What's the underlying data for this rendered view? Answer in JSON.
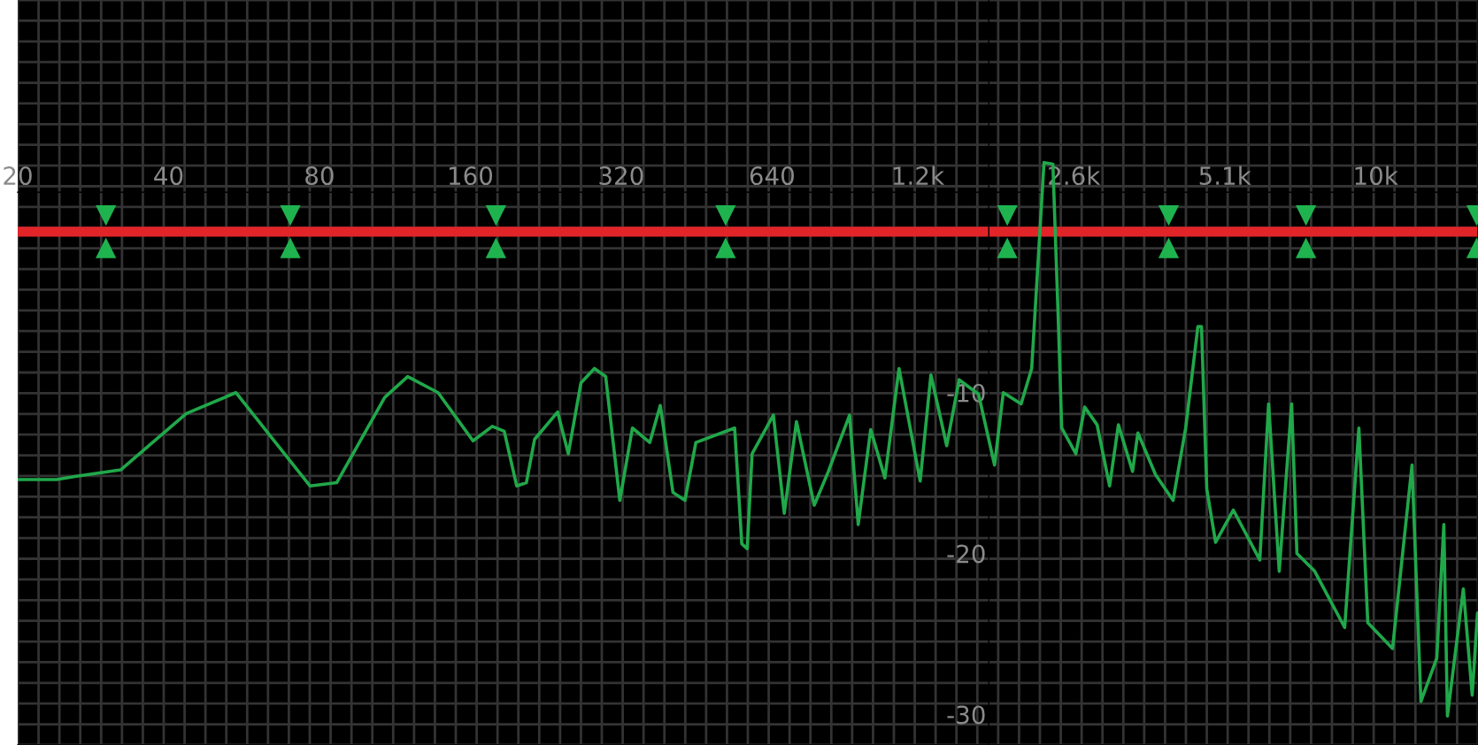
{
  "chart_data": {
    "type": "line",
    "log": "x",
    "xlim": [
      20,
      16400
    ],
    "ylim": [
      -31.9,
      14.4
    ],
    "xticks": [
      20,
      40,
      80,
      160,
      320,
      640,
      {
        "value": 1250,
        "label": "1.2k"
      },
      {
        "value": 2560,
        "label": "2.6k"
      },
      {
        "value": 5120,
        "label": "5.1k"
      },
      {
        "value": 10240,
        "label": "10k"
      }
    ],
    "yticks": [
      -10,
      -20,
      -30
    ],
    "grid": true,
    "series": [
      {
        "color": "#20a84a",
        "line_style": "solid",
        "marker": "none",
        "x": [
          20,
          23.9,
          26.2,
          32.1,
          43.4,
          54.5,
          76.6,
          86.6,
          108,
          120,
          138,
          162,
          177,
          187,
          198,
          207,
          215,
          239,
          251,
          266,
          283,
          298,
          318,
          337,
          365,
          383,
          406,
          429,
          451,
          539,
          557,
          571,
          584,
          644,
          677,
          716,
          777,
          829,
          914,
          951,
          1007,
          1075,
          1147,
          1264,
          1328,
          1428,
          1512,
          1653,
          1779,
          1852,
          2010,
          2110,
          2233,
          2326,
          2384,
          2422,
          2585,
          2692,
          2850,
          3018,
          3143,
          3354,
          3437,
          3728,
          4040,
          4281,
          4528,
          4604,
          4717,
          4912,
          5330,
          6018,
          6267,
          6580,
          6966,
          7137,
          7744,
          8889,
          9488,
          9884,
          11075,
          12111,
          12616,
          13570,
          14018,
          14252,
          15330,
          15970,
          16364
        ],
        "values": [
          -15.4,
          -15.4,
          -15.2,
          -14.8,
          -11.3,
          -10.0,
          -15.8,
          -15.6,
          -10.3,
          -9.0,
          -10.0,
          -13.0,
          -12.1,
          -12.4,
          -15.8,
          -15.6,
          -12.9,
          -11.2,
          -13.8,
          -9.4,
          -8.5,
          -9.0,
          -16.7,
          -12.2,
          -13.1,
          -10.8,
          -16.2,
          -16.7,
          -13.1,
          -12.2,
          -19.4,
          -19.7,
          -13.8,
          -11.4,
          -17.5,
          -11.8,
          -17.0,
          -14.9,
          -11.4,
          -18.2,
          -12.3,
          -15.3,
          -8.5,
          -15.5,
          -8.9,
          -13.3,
          -9.2,
          -10.1,
          -14.5,
          -10.0,
          -10.7,
          -8.5,
          4.3,
          4.2,
          -5.4,
          -12.2,
          -13.8,
          -10.9,
          -12.0,
          -15.8,
          -12.0,
          -14.9,
          -12.5,
          -15.1,
          -16.7,
          -12.2,
          -5.9,
          -5.9,
          -16.0,
          -19.3,
          -17.3,
          -20.4,
          -10.7,
          -21.1,
          -10.7,
          -20.0,
          -21.1,
          -24.6,
          -12.2,
          -24.3,
          -25.9,
          -14.5,
          -29.2,
          -26.5,
          -18.2,
          -30.1,
          -22.2,
          -28.8,
          -23.7
        ]
      },
      {
        "type": "scatter",
        "color": "#1fb34f",
        "marker": "triangle",
        "x": [
          30,
          70,
          180,
          517,
          1886,
          3960,
          7440,
          16300
        ],
        "values": [
          1.0,
          1.0,
          1.0,
          1.0,
          1.0,
          1.0,
          1.0,
          1.0
        ]
      },
      {
        "type": "scatter",
        "color": "#1fb34f",
        "marker": "triangle",
        "x": [
          30,
          70,
          180,
          517,
          1886,
          3960,
          7440,
          16300
        ],
        "values": [
          -1.0,
          -1.0,
          -1.0,
          -1.0,
          -1.0,
          -1.0,
          -1.0,
          -1.0
        ]
      }
    ],
    "ref_lines": [
      {
        "axis": "y",
        "value": 0,
        "color": "#e02428",
        "line_style": "solid"
      }
    ]
  }
}
